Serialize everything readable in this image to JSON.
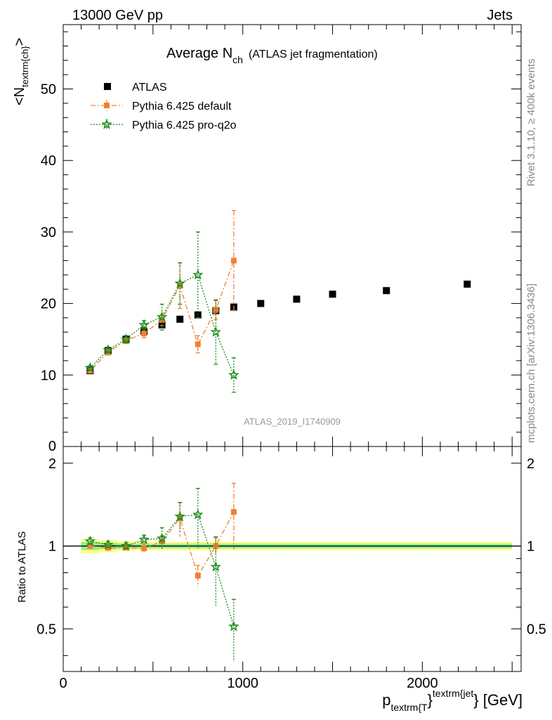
{
  "header": {
    "left": "13000 GeV pp",
    "right": "Jets"
  },
  "side_labels": {
    "rivet": "Rivet 3.1.10, ≥ 400k events",
    "mcplots": "mcplots.cern.ch [arXiv:1306.3436]"
  },
  "title": {
    "main": "Average N",
    "sub": "ch",
    "suffix": "(ATLAS jet fragmentation)"
  },
  "watermark": "ATLAS_2019_I1740909",
  "axes": {
    "ylabel_main_pre": "<N",
    "ylabel_main_sub": "textrm{ch}",
    "ylabel_main_post": ">",
    "ylabel_ratio": "Ratio to ATLAS",
    "xlabel_pre": "p",
    "xlabel_sub": "textrm{T",
    "xlabel_mid": "}",
    "xlabel_sup": "textrm{jet",
    "xlabel_post": "} [GeV]"
  },
  "legend": {
    "atlas": "ATLAS",
    "default": "Pythia 6.425 default",
    "proq2o": "Pythia 6.425 pro-q2o"
  },
  "colors": {
    "atlas": "#000000",
    "default": "#f08030",
    "proq2o": "#1a8a1a",
    "band_inner": "#90ee90",
    "band_outer": "#ffff80"
  },
  "chart_data": {
    "type": "scatter",
    "x_range": [
      0,
      2550
    ],
    "y_range": [
      0,
      59
    ],
    "ratio_range": [
      0.35,
      2.3
    ],
    "x_ticks": [
      0,
      1000,
      2000
    ],
    "y_ticks": [
      10,
      20,
      30,
      40,
      50
    ],
    "y_tick_zero": "0",
    "ratio_ticks": [
      0.5,
      1,
      2
    ],
    "series": [
      {
        "name": "ATLAS",
        "x": [
          150,
          250,
          350,
          450,
          550,
          650,
          750,
          850,
          950,
          1100,
          1300,
          1500,
          1800,
          2250
        ],
        "y": [
          10.6,
          13.4,
          15.0,
          16.1,
          17.0,
          17.8,
          18.4,
          19.0,
          19.5,
          20.0,
          20.6,
          21.3,
          21.8,
          22.7
        ],
        "ratio_band": [
          0.06,
          0.05,
          0.04,
          0.035,
          0.035,
          0.035,
          0.035,
          0.035,
          0.035,
          0.035,
          0.035,
          0.035,
          0.035,
          0.035
        ]
      },
      {
        "name": "Pythia 6.425 default",
        "x": [
          150,
          250,
          350,
          450,
          550,
          650,
          750,
          850,
          950
        ],
        "y": [
          10.6,
          13.2,
          14.8,
          15.8,
          17.7,
          22.5,
          14.3,
          19.1,
          26.0
        ],
        "yerr": [
          0.3,
          0.4,
          0.4,
          0.6,
          0.8,
          3.2,
          1.2,
          1.3,
          7.0
        ],
        "ratio": [
          1.0,
          0.985,
          0.987,
          0.98,
          1.04,
          1.26,
          0.78,
          1.0,
          1.33
        ],
        "ratio_err": [
          0.02,
          0.03,
          0.03,
          0.04,
          0.05,
          0.18,
          0.07,
          0.07,
          0.36
        ]
      },
      {
        "name": "Pythia 6.425 pro-q2o",
        "x": [
          150,
          250,
          350,
          450,
          550,
          650,
          750,
          850,
          950
        ],
        "y": [
          11.0,
          13.5,
          15.0,
          17.0,
          18.1,
          22.8,
          24.0,
          16.0,
          10.0
        ],
        "yerr": [
          0.3,
          0.4,
          0.5,
          0.6,
          1.8,
          2.9,
          6.0,
          4.5,
          2.4
        ],
        "ratio": [
          1.04,
          1.01,
          1.0,
          1.055,
          1.065,
          1.28,
          1.3,
          0.84,
          0.51
        ],
        "ratio_err": [
          0.03,
          0.03,
          0.03,
          0.04,
          0.1,
          0.16,
          0.32,
          0.24,
          0.13
        ]
      }
    ]
  }
}
